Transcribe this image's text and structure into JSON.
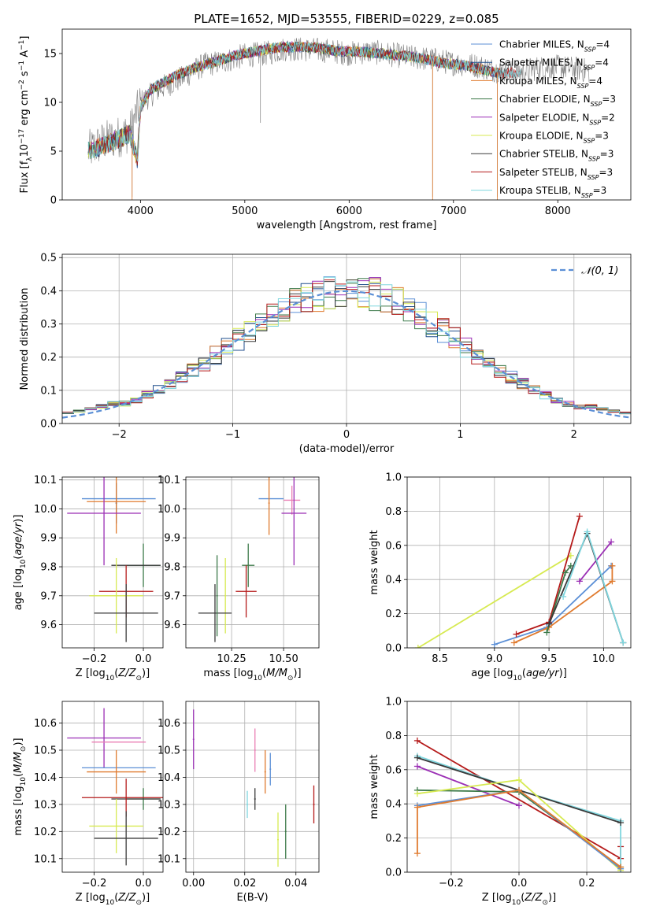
{
  "figure": {
    "title": "PLATE=1652, MJD=53555, FIBERID=0229, z=0.085"
  },
  "colors": {
    "Chabrier MILES": "#5b8fd6",
    "Salpeter MILES": "#1f4e8c",
    "Kroupa MILES": "#e07b2f",
    "Chabrier ELODIE": "#3d7a4a",
    "Salpeter ELODIE": "#9b2fb5",
    "Kroupa ELODIE": "#d7ea52",
    "Chabrier STELIB": "#3a3a3a",
    "Salpeter STELIB": "#b51a1a",
    "Kroupa STELIB": "#7fd6de",
    "extra_pink": "#ea7fb4",
    "normal_curve": "#5b8fd6",
    "data_spectrum": "#7f7f7f"
  },
  "chart_data": [
    {
      "id": "spectrum",
      "type": "line",
      "xlabel": "wavelength [Angstrom, rest frame]",
      "ylabel": "Flux [f_λ10^-17 erg cm^-2 s^-1 A^-1]",
      "xlim": [
        3250,
        8700
      ],
      "ylim": [
        0,
        17.5
      ],
      "xticks": [
        4000,
        5000,
        6000,
        7000,
        8000
      ],
      "yticks": [
        0,
        5,
        10,
        15
      ],
      "legend_position": "right",
      "legend": [
        {
          "text": "Chabrier MILES, N",
          "sub": "SSP",
          "eq": "=4"
        },
        {
          "text": "Salpeter MILES, N",
          "sub": "SSP",
          "eq": "=4"
        },
        {
          "text": "Kroupa MILES, N",
          "sub": "SSP",
          "eq": "=4"
        },
        {
          "text": "Chabrier ELODIE, N",
          "sub": "SSP",
          "eq": "=3"
        },
        {
          "text": "Salpeter ELODIE, N",
          "sub": "SSP",
          "eq": "=2"
        },
        {
          "text": "Kroupa ELODIE, N",
          "sub": "SSP",
          "eq": "=3"
        },
        {
          "text": "Chabrier STELIB, N",
          "sub": "SSP",
          "eq": "=3"
        },
        {
          "text": "Salpeter STELIB, N",
          "sub": "SSP",
          "eq": "=3"
        },
        {
          "text": "Kroupa STELIB, N",
          "sub": "SSP",
          "eq": "=3"
        }
      ],
      "model_envelope": {
        "x": [
          3500,
          3700,
          3900,
          3970,
          4000,
          4100,
          4300,
          4500,
          4700,
          4900,
          5100,
          5300,
          5500,
          5700,
          5900,
          6100,
          6300,
          6500,
          6700,
          6900,
          7100,
          7300,
          7450
        ],
        "y": [
          5.0,
          5.8,
          6.8,
          4.0,
          9.5,
          11.3,
          12.5,
          13.5,
          14.1,
          14.8,
          15.2,
          15.6,
          15.7,
          15.6,
          15.2,
          15.2,
          15.0,
          14.8,
          14.5,
          14.0,
          13.8,
          13.3,
          13.0
        ]
      },
      "data_envelope": {
        "x": [
          3500,
          3650,
          3800,
          3900,
          4000,
          4200,
          4400,
          4600,
          4800,
          5000,
          5200,
          5400,
          5600,
          5800,
          6000,
          6200,
          6400,
          6600,
          6800,
          7000,
          7200,
          7400,
          7600,
          7800,
          8000,
          8200,
          8300
        ],
        "y": [
          5.0,
          6.0,
          6.5,
          7.0,
          10.0,
          11.5,
          12.5,
          13.8,
          14.2,
          14.8,
          15.0,
          15.5,
          15.4,
          15.3,
          15.0,
          15.2,
          14.9,
          14.6,
          14.4,
          14.0,
          13.8,
          13.3,
          13.0,
          13.5,
          13.6,
          13.4,
          13.2
        ]
      },
      "data_deep_lines": [
        [
          5150,
          7.9
        ],
        [
          3920,
          0.3
        ],
        [
          6800,
          0.3
        ],
        [
          7420,
          0.3
        ]
      ]
    },
    {
      "id": "residuals",
      "type": "step",
      "xlabel": "(data-model)/error",
      "ylabel": "Normed distribution",
      "xlim": [
        -2.5,
        2.5
      ],
      "ylim": [
        0,
        0.51
      ],
      "xticks": [
        -2,
        -1,
        0,
        1,
        2
      ],
      "yticks": [
        0.0,
        0.1,
        0.2,
        0.3,
        0.4,
        0.5
      ],
      "legend_position": "top-right",
      "normal_label": "𝒩(0, 1)",
      "bin_width": 0.1
    },
    {
      "id": "age_vs_Z",
      "type": "errorbar",
      "xlabel": "Z [log10(Z/Z⊙)]",
      "ylabel": "age  [log10(age/yr)]",
      "xlim": [
        -0.33,
        0.08
      ],
      "ylim": [
        9.52,
        10.11
      ],
      "xticks": [
        -0.2,
        0.0
      ],
      "yticks": [
        9.6,
        9.7,
        9.8,
        9.9,
        10.0,
        10.1
      ],
      "points": [
        {
          "model": "Chabrier MILES",
          "x": -0.1,
          "xerr": 0.15,
          "y": 10.035,
          "yerr": 0.0
        },
        {
          "model": "Salpeter MILES",
          "x": -0.11,
          "xerr": 0.0,
          "y": 10.02,
          "yerr": 0.07
        },
        {
          "model": "Kroupa MILES",
          "x": -0.11,
          "xerr": 0.12,
          "y": 10.025,
          "yerr": 0.11
        },
        {
          "model": "Salpeter ELODIE",
          "x": -0.16,
          "xerr": 0.15,
          "y": 9.985,
          "yerr": 0.18
        },
        {
          "model": "Chabrier ELODIE",
          "x": 0.0,
          "xerr": 0.07,
          "y": 9.805,
          "yerr": 0.075
        },
        {
          "model": "Chabrier STELIB",
          "x": -0.03,
          "xerr": 0.1,
          "y": 9.805,
          "yerr": 0.0
        },
        {
          "model": "Salpeter STELIB",
          "x": -0.07,
          "xerr": 0.11,
          "y": 9.715,
          "yerr": 0.09
        },
        {
          "model": "Kroupa ELODIE",
          "x": -0.11,
          "xerr": 0.11,
          "y": 9.7,
          "yerr": 0.13
        },
        {
          "model": "Chabrier STELIB",
          "x": -0.07,
          "xerr": 0.13,
          "y": 9.64,
          "yerr": 0.1
        }
      ]
    },
    {
      "id": "age_vs_mass",
      "type": "errorbar",
      "xlabel": "mass [log10(M/M⊙)]",
      "ylabel": "",
      "xlim": [
        10.03,
        10.67
      ],
      "ylim": [
        9.52,
        10.11
      ],
      "xticks": [
        10.25,
        10.5
      ],
      "yticks": [
        9.6,
        9.7,
        9.8,
        9.9,
        10.0,
        10.1
      ],
      "points": [
        {
          "model": "Chabrier MILES",
          "x": 10.44,
          "xerr": 0.06,
          "y": 10.035,
          "yerr": 0.0
        },
        {
          "model": "Kroupa MILES",
          "x": 10.43,
          "xerr": 0.0,
          "y": 10.02,
          "yerr": 0.11
        },
        {
          "model": "extra_pink",
          "x": 10.54,
          "xerr": 0.04,
          "y": 10.03,
          "yerr": 0.05
        },
        {
          "model": "Salpeter ELODIE",
          "x": 10.55,
          "xerr": 0.06,
          "y": 9.985,
          "yerr": 0.18
        },
        {
          "model": "Chabrier ELODIE",
          "x": 10.33,
          "xerr": 0.03,
          "y": 9.805,
          "yerr": 0.075
        },
        {
          "model": "Salpeter STELIB",
          "x": 10.32,
          "xerr": 0.05,
          "y": 9.715,
          "yerr": 0.09
        },
        {
          "model": "Kroupa ELODIE",
          "x": 10.22,
          "xerr": 0.0,
          "y": 9.7,
          "yerr": 0.13
        },
        {
          "model": "Chabrier STELIB",
          "x": 10.17,
          "xerr": 0.08,
          "y": 9.64,
          "yerr": 0.1
        },
        {
          "model": "Chabrier ELODIE",
          "x": 10.18,
          "xerr": 0.0,
          "y": 9.7,
          "yerr": 0.14
        }
      ]
    },
    {
      "id": "weight_vs_age",
      "type": "line",
      "xlabel": "age  [log10(age/yr)]",
      "ylabel": "mass weight",
      "xlim": [
        8.2,
        10.25
      ],
      "ylim": [
        0.0,
        1.0
      ],
      "xticks": [
        8.5,
        9.0,
        9.5,
        10.0
      ],
      "yticks": [
        0.0,
        0.2,
        0.4,
        0.6,
        0.8,
        1.0
      ],
      "series": [
        {
          "model": "Kroupa ELODIE",
          "x": [
            8.3,
            9.7
          ],
          "y": [
            0.0,
            0.54
          ]
        },
        {
          "model": "Chabrier MILES",
          "x": [
            9.0,
            9.48,
            10.07
          ],
          "y": [
            0.02,
            0.12,
            0.48
          ]
        },
        {
          "model": "Kroupa MILES",
          "x": [
            9.18,
            9.5,
            10.08,
            10.08
          ],
          "y": [
            0.03,
            0.12,
            0.39,
            0.48
          ]
        },
        {
          "model": "Salpeter STELIB",
          "x": [
            9.2,
            9.5,
            9.78
          ],
          "y": [
            0.08,
            0.15,
            0.77
          ]
        },
        {
          "model": "Chabrier ELODIE",
          "x": [
            9.48,
            9.65,
            9.7
          ],
          "y": [
            0.09,
            0.44,
            0.48
          ]
        },
        {
          "model": "Salpeter ELODIE",
          "x": [
            9.78,
            10.07
          ],
          "y": [
            0.39,
            0.62
          ]
        },
        {
          "model": "Chabrier STELIB",
          "x": [
            9.5,
            9.85,
            10.18
          ],
          "y": [
            0.14,
            0.67,
            0.03
          ]
        },
        {
          "model": "Kroupa STELIB",
          "x": [
            9.63,
            9.85,
            10.18
          ],
          "y": [
            0.3,
            0.68,
            0.03
          ]
        }
      ]
    },
    {
      "id": "mass_vs_Z",
      "type": "errorbar",
      "xlabel": "Z [log10(Z/Z⊙)]",
      "ylabel": "mass [log10(M/M⊙)]",
      "xlim": [
        -0.33,
        0.08
      ],
      "ylim": [
        10.05,
        10.68
      ],
      "xticks": [
        -0.2,
        0.0
      ],
      "yticks": [
        10.1,
        10.2,
        10.3,
        10.4,
        10.5,
        10.6
      ],
      "points": [
        {
          "model": "Salpeter ELODIE",
          "x": -0.16,
          "xerr": 0.15,
          "y": 10.545,
          "yerr": 0.11
        },
        {
          "model": "extra_pink",
          "x": -0.1,
          "xerr": 0.11,
          "y": 10.53,
          "yerr": 0.0
        },
        {
          "model": "Chabrier MILES",
          "x": -0.1,
          "xerr": 0.15,
          "y": 10.435,
          "yerr": 0.0
        },
        {
          "model": "Kroupa MILES",
          "x": -0.11,
          "xerr": 0.12,
          "y": 10.42,
          "yerr": 0.08
        },
        {
          "model": "Chabrier ELODIE",
          "x": 0.0,
          "xerr": 0.07,
          "y": 10.32,
          "yerr": 0.04
        },
        {
          "model": "Chabrier STELIB",
          "x": -0.03,
          "xerr": 0.1,
          "y": 10.32,
          "yerr": 0.0
        },
        {
          "model": "Salpeter STELIB",
          "x": -0.07,
          "xerr": 0.18,
          "y": 10.325,
          "yerr": 0.07
        },
        {
          "model": "Kroupa ELODIE",
          "x": -0.11,
          "xerr": 0.11,
          "y": 10.22,
          "yerr": 0.1
        },
        {
          "model": "Chabrier STELIB",
          "x": -0.07,
          "xerr": 0.13,
          "y": 10.175,
          "yerr": 0.1
        }
      ]
    },
    {
      "id": "mass_vs_ebv",
      "type": "errorbar",
      "xlabel": "E(B-V)",
      "ylabel": "",
      "xlim": [
        -0.003,
        0.049
      ],
      "ylim": [
        10.05,
        10.68
      ],
      "xticks": [
        0.0,
        0.02,
        0.04
      ],
      "yticks": [
        10.1,
        10.2,
        10.3,
        10.4,
        10.5,
        10.6
      ],
      "points": [
        {
          "model": "Salpeter ELODIE",
          "x": 0.0,
          "xerr": 0.0,
          "y": 10.54,
          "yerr": 0.11
        },
        {
          "model": "extra_pink",
          "x": 0.024,
          "xerr": 0.0,
          "y": 10.5,
          "yerr": 0.08
        },
        {
          "model": "Chabrier MILES",
          "x": 0.03,
          "xerr": 0.0,
          "y": 10.43,
          "yerr": 0.06
        },
        {
          "model": "Kroupa MILES",
          "x": 0.028,
          "xerr": 0.0,
          "y": 10.42,
          "yerr": 0.08
        },
        {
          "model": "Chabrier STELIB",
          "x": 0.024,
          "xerr": 0.0,
          "y": 10.32,
          "yerr": 0.04
        },
        {
          "model": "Kroupa STELIB",
          "x": 0.021,
          "xerr": 0.0,
          "y": 10.3,
          "yerr": 0.05
        },
        {
          "model": "Salpeter STELIB",
          "x": 0.047,
          "xerr": 0.0,
          "y": 10.3,
          "yerr": 0.07
        },
        {
          "model": "Chabrier ELODIE",
          "x": 0.036,
          "xerr": 0.0,
          "y": 10.2,
          "yerr": 0.1
        },
        {
          "model": "Kroupa ELODIE",
          "x": 0.033,
          "xerr": 0.0,
          "y": 10.17,
          "yerr": 0.1
        }
      ]
    },
    {
      "id": "weight_vs_Z",
      "type": "line",
      "xlabel": "Z [log10(Z/Z⊙)]",
      "ylabel": "mass weight",
      "xlim": [
        -0.33,
        0.33
      ],
      "ylim": [
        0.0,
        1.0
      ],
      "xticks": [
        -0.2,
        0.0,
        0.2
      ],
      "yticks": [
        0.0,
        0.2,
        0.4,
        0.6,
        0.8,
        1.0
      ],
      "series": [
        {
          "model": "Salpeter STELIB",
          "x": [
            -0.3,
            0.3,
            0.3
          ],
          "y": [
            0.77,
            0.08,
            0.15
          ]
        },
        {
          "model": "Kroupa STELIB",
          "x": [
            -0.3,
            0.0,
            0.3,
            0.3
          ],
          "y": [
            0.68,
            0.48,
            0.3,
            0.02
          ]
        },
        {
          "model": "Chabrier STELIB",
          "x": [
            -0.3,
            0.3
          ],
          "y": [
            0.67,
            0.29
          ]
        },
        {
          "model": "Salpeter ELODIE",
          "x": [
            -0.3,
            0.0
          ],
          "y": [
            0.62,
            0.39
          ]
        },
        {
          "model": "Chabrier ELODIE",
          "x": [
            -0.3,
            0.0,
            0.3
          ],
          "y": [
            0.48,
            0.47,
            0.03
          ]
        },
        {
          "model": "Kroupa ELODIE",
          "x": [
            -0.3,
            0.0,
            0.3
          ],
          "y": [
            0.46,
            0.54,
            0.01
          ]
        },
        {
          "model": "Chabrier MILES",
          "x": [
            -0.3,
            0.0,
            0.3
          ],
          "y": [
            0.39,
            0.48,
            0.02
          ]
        },
        {
          "model": "Kroupa MILES",
          "x": [
            -0.3,
            -0.3,
            0.0,
            0.3
          ],
          "y": [
            0.11,
            0.38,
            0.48,
            0.03
          ]
        }
      ]
    }
  ]
}
